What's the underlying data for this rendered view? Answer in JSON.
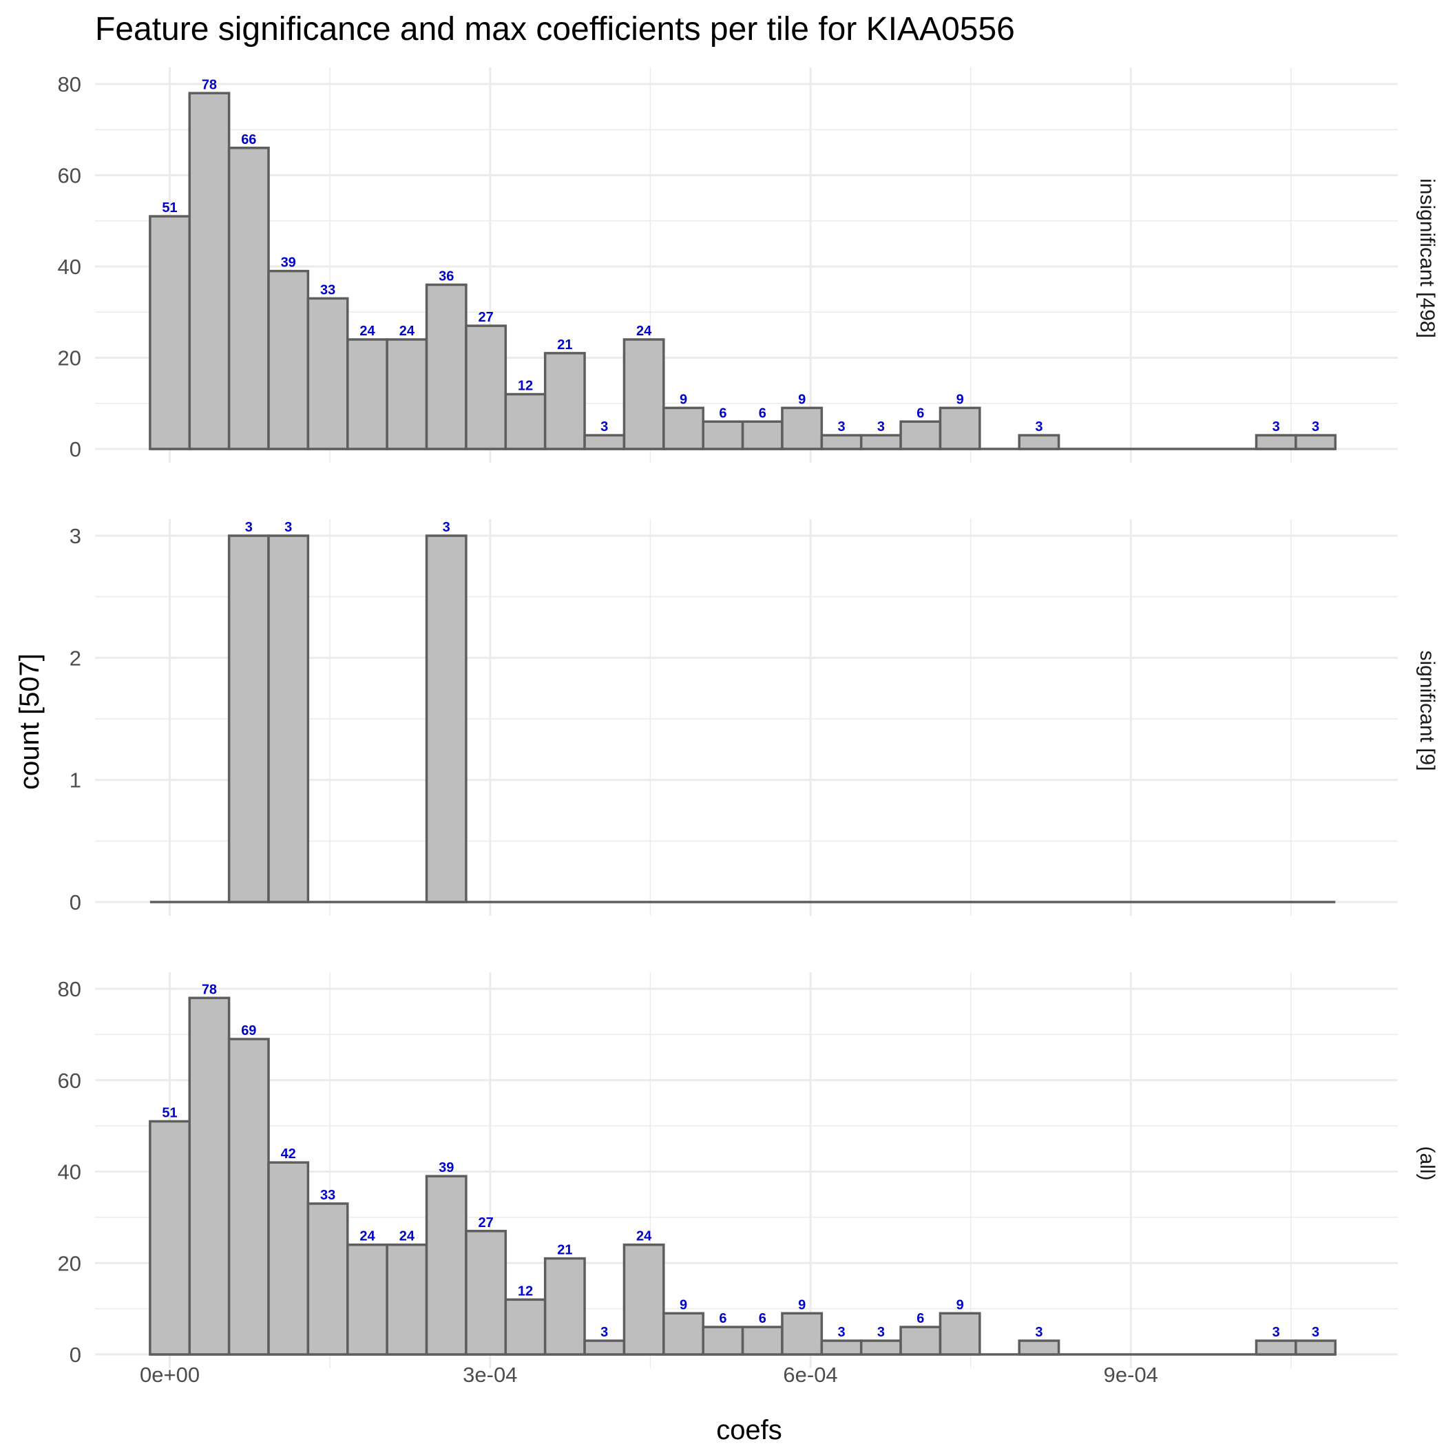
{
  "chart_data": {
    "type": "bar",
    "subtype": "faceted-histogram",
    "title": "Feature significance and max coefficients per tile for KIAA0556",
    "xlabel": "coefs",
    "ylabel": "count [507]",
    "x_tick_labels": [
      "0e+00",
      "3e-04",
      "6e-04",
      "9e-04"
    ],
    "x_tick_values": [
      0,
      0.0003,
      0.0006,
      0.0009
    ],
    "xlim": [
      -7e-05,
      0.00115
    ],
    "bin_width": 3.7e-05,
    "bin_start": -1.85e-05,
    "n_bins": 30,
    "legend": "none",
    "panels": [
      {
        "strip_label": "insignificant [498]",
        "ylim": [
          0,
          80
        ],
        "y_ticks": [
          0,
          20,
          40,
          60,
          80
        ],
        "y_tick_labels": [
          "0",
          "20",
          "40",
          "60",
          "80"
        ],
        "values": [
          51,
          78,
          66,
          39,
          33,
          24,
          24,
          36,
          27,
          12,
          21,
          3,
          24,
          9,
          6,
          6,
          9,
          3,
          3,
          6,
          9,
          0,
          3,
          0,
          0,
          0,
          0,
          0,
          3,
          3
        ]
      },
      {
        "strip_label": "significant [9]",
        "ylim": [
          0,
          3
        ],
        "y_ticks": [
          0,
          1,
          2,
          3
        ],
        "y_tick_labels": [
          "0",
          "1",
          "2",
          "3"
        ],
        "values": [
          0,
          0,
          3,
          3,
          0,
          0,
          0,
          3,
          0,
          0,
          0,
          0,
          0,
          0,
          0,
          0,
          0,
          0,
          0,
          0,
          0,
          0,
          0,
          0,
          0,
          0,
          0,
          0,
          0,
          0
        ]
      },
      {
        "strip_label": "(all)",
        "ylim": [
          0,
          80
        ],
        "y_ticks": [
          0,
          20,
          40,
          60,
          80
        ],
        "y_tick_labels": [
          "0",
          "20",
          "40",
          "60",
          "80"
        ],
        "values": [
          51,
          78,
          69,
          42,
          33,
          24,
          24,
          39,
          27,
          12,
          21,
          3,
          24,
          9,
          6,
          6,
          9,
          3,
          3,
          6,
          9,
          0,
          3,
          0,
          0,
          0,
          0,
          0,
          3,
          3
        ]
      }
    ],
    "colors": {
      "bar_fill": "#bebebe",
      "bar_outline": "#5e5e5e",
      "data_label": "#0000cc",
      "grid": "#ebebeb"
    }
  }
}
